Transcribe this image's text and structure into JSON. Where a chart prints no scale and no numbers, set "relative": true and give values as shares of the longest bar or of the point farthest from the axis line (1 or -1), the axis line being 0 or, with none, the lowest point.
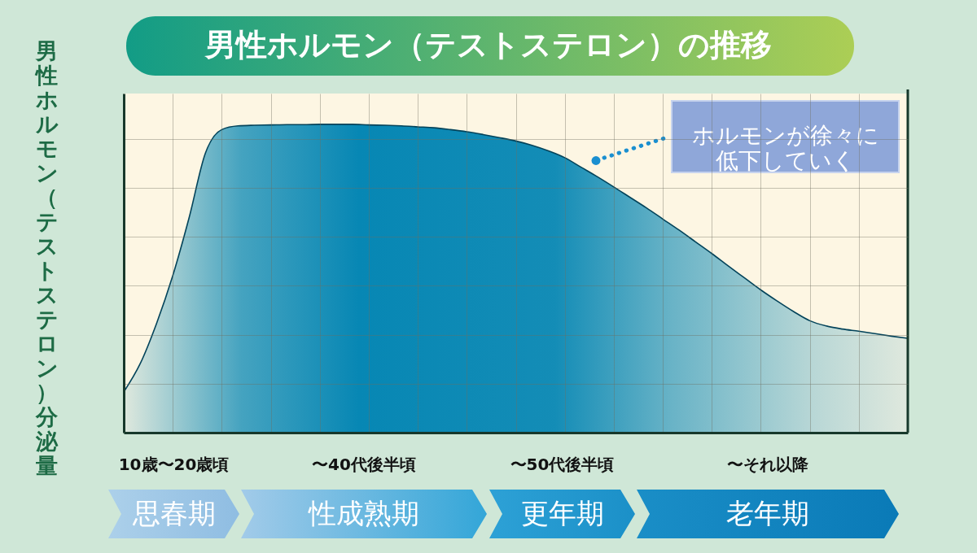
{
  "chart_data": {
    "type": "area",
    "title": "男性ホルモン（テストステロン）の推移",
    "ylabel": "男性ホルモン（テストステロン）分泌量",
    "categories": [
      null,
      null,
      null,
      null,
      null,
      null,
      null,
      null,
      null,
      null,
      null,
      null,
      null,
      null,
      null,
      null,
      null,
      null,
      null,
      null,
      null,
      null,
      null,
      null,
      null,
      null,
      null,
      null,
      null,
      null,
      null,
      null,
      null,
      null,
      null,
      null,
      null,
      null,
      null,
      null,
      null,
      null,
      null,
      null,
      null,
      null,
      null,
      null,
      null
    ],
    "values": [
      0.132,
      0.223,
      0.353,
      0.509,
      0.697,
      0.907,
      0.983,
      0.995,
      0.997,
      0.998,
      0.999,
      0.999,
      1.0,
      1.0,
      1.0,
      0.998,
      0.997,
      0.995,
      0.992,
      0.989,
      0.983,
      0.976,
      0.967,
      0.957,
      0.946,
      0.932,
      0.914,
      0.892,
      0.861,
      0.83,
      0.797,
      0.763,
      0.729,
      0.693,
      0.657,
      0.619,
      0.581,
      0.541,
      0.502,
      0.463,
      0.427,
      0.393,
      0.363,
      0.346,
      0.336,
      0.329,
      0.321,
      0.313,
      0.306
    ],
    "color": "#0787b4",
    "relative": true,
    "grid": true,
    "annotations": [
      "ホルモンが徐々に低下していく",
      "10歳〜20歳頃",
      "〜40代後半頃",
      "〜50代後半頃",
      "〜それ以降",
      "思春期",
      "性成熟期",
      "更年期",
      "老年期"
    ]
  }
}
